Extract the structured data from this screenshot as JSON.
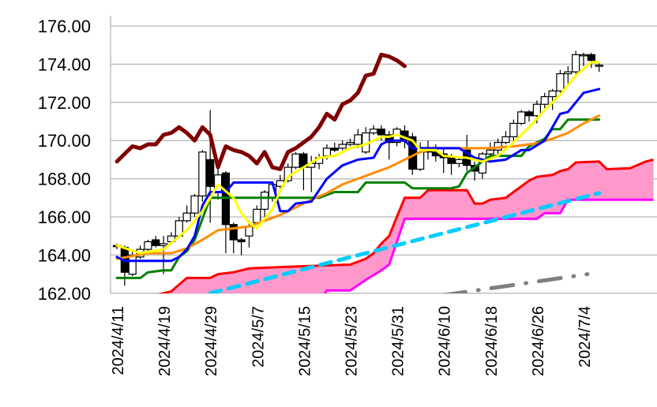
{
  "chart_data": {
    "type": "candlestick-ichimoku",
    "title": "",
    "xlabel": "",
    "ylabel": "",
    "ylim": [
      162,
      176
    ],
    "xlim_index": [
      -0.8,
      69.2
    ],
    "grid": "horizontal",
    "y_ticks": [
      "176.00",
      "174.00",
      "172.00",
      "170.00",
      "168.00",
      "166.00",
      "164.00",
      "162.00"
    ],
    "y_tick_values": [
      176,
      174,
      172,
      170,
      168,
      166,
      164,
      162
    ],
    "x_ticks": [
      {
        "index": 0,
        "label": "2024/4/11"
      },
      {
        "index": 6,
        "label": "2024/4/19"
      },
      {
        "index": 12,
        "label": "2024/4/29"
      },
      {
        "index": 18,
        "label": "2024/5/7"
      },
      {
        "index": 24,
        "label": "2024/5/15"
      },
      {
        "index": 30,
        "label": "2024/5/23"
      },
      {
        "index": 36,
        "label": "2024/5/31"
      },
      {
        "index": 42,
        "label": "2024/6/10"
      },
      {
        "index": 48,
        "label": "2024/6/18"
      },
      {
        "index": 54,
        "label": "2024/6/26"
      },
      {
        "index": 60,
        "label": "2024/7/4"
      }
    ],
    "candles_ohlc": [
      [
        164.5,
        164.6,
        164.3,
        164.45
      ],
      [
        164.4,
        164.5,
        162.4,
        163.1
      ],
      [
        163.0,
        164.3,
        162.9,
        164.0
      ],
      [
        163.9,
        164.5,
        163.8,
        164.3
      ],
      [
        164.3,
        164.8,
        164.2,
        164.7
      ],
      [
        164.8,
        165.0,
        164.4,
        164.5
      ],
      [
        164.5,
        165.0,
        163.0,
        164.6
      ],
      [
        164.7,
        165.2,
        164.6,
        165.0
      ],
      [
        165.0,
        166.0,
        164.9,
        165.8
      ],
      [
        165.8,
        166.6,
        165.7,
        166.2
      ],
      [
        166.2,
        167.2,
        166.0,
        167.1
      ],
      [
        167.1,
        169.5,
        166.8,
        169.4
      ],
      [
        169.0,
        171.6,
        165.7,
        167.6
      ],
      [
        167.3,
        168.9,
        166.9,
        168.2
      ],
      [
        168.3,
        168.4,
        164.1,
        165.6
      ],
      [
        165.6,
        165.7,
        164.1,
        164.8
      ],
      [
        164.8,
        164.9,
        164.0,
        164.7
      ],
      [
        165.0,
        165.8,
        164.4,
        165.5
      ],
      [
        165.7,
        166.6,
        165.6,
        166.4
      ],
      [
        166.4,
        167.4,
        166.0,
        167.3
      ],
      [
        167.0,
        167.8,
        166.8,
        167.7
      ],
      [
        167.6,
        168.2,
        167.3,
        167.9
      ],
      [
        167.9,
        168.8,
        167.8,
        168.6
      ],
      [
        168.6,
        169.4,
        168.5,
        169.3
      ],
      [
        169.3,
        169.4,
        167.4,
        168.6
      ],
      [
        168.6,
        169.2,
        167.3,
        168.8
      ],
      [
        168.8,
        169.3,
        168.5,
        169.1
      ],
      [
        169.2,
        169.8,
        169.0,
        169.6
      ],
      [
        169.6,
        169.9,
        169.4,
        169.5
      ],
      [
        169.6,
        170.0,
        169.5,
        169.8
      ],
      [
        169.8,
        170.1,
        169.7,
        169.9
      ],
      [
        169.8,
        170.6,
        169.6,
        170.3
      ],
      [
        169.4,
        170.7,
        169.3,
        170.4
      ],
      [
        170.4,
        170.8,
        170.3,
        170.6
      ],
      [
        170.6,
        170.8,
        170.0,
        170.3
      ],
      [
        170.3,
        170.5,
        169.0,
        169.9
      ],
      [
        169.9,
        170.7,
        169.7,
        170.6
      ],
      [
        170.5,
        170.8,
        169.6,
        170.0
      ],
      [
        170.2,
        170.4,
        168.2,
        168.5
      ],
      [
        168.5,
        169.9,
        168.4,
        169.6
      ],
      [
        169.6,
        170.0,
        169.0,
        169.4
      ],
      [
        169.4,
        169.8,
        168.9,
        169.2
      ],
      [
        169.3,
        169.6,
        168.3,
        169.1
      ],
      [
        169.1,
        169.3,
        168.2,
        168.8
      ],
      [
        168.8,
        169.1,
        168.6,
        169.0
      ],
      [
        169.5,
        170.3,
        168.4,
        168.7
      ],
      [
        168.7,
        168.9,
        167.9,
        168.4
      ],
      [
        168.3,
        169.4,
        168.0,
        169.3
      ],
      [
        169.3,
        169.9,
        169.1,
        169.5
      ],
      [
        169.5,
        170.1,
        169.3,
        169.9
      ],
      [
        169.9,
        170.5,
        169.8,
        170.2
      ],
      [
        170.2,
        171.1,
        170.0,
        170.9
      ],
      [
        170.9,
        171.6,
        170.8,
        171.5
      ],
      [
        171.5,
        171.6,
        171.0,
        171.3
      ],
      [
        171.3,
        172.1,
        170.9,
        171.9
      ],
      [
        171.9,
        172.5,
        171.7,
        172.3
      ],
      [
        172.3,
        172.7,
        171.6,
        172.6
      ],
      [
        172.6,
        173.7,
        172.5,
        173.5
      ],
      [
        173.5,
        173.9,
        173.0,
        173.6
      ],
      [
        173.6,
        174.7,
        173.5,
        174.5
      ],
      [
        174.5,
        174.6,
        173.9,
        174.5
      ],
      [
        174.5,
        174.6,
        173.8,
        174.2
      ],
      [
        173.95,
        174.05,
        173.6,
        173.95
      ]
    ],
    "series": [
      {
        "name": "chikou",
        "color": "#800000",
        "width": 5,
        "points": [
          [
            0,
            168.9
          ],
          [
            1,
            169.3
          ],
          [
            2,
            169.7
          ],
          [
            3,
            169.6
          ],
          [
            4,
            169.8
          ],
          [
            5,
            169.8
          ],
          [
            6,
            170.3
          ],
          [
            7,
            170.4
          ],
          [
            8,
            170.7
          ],
          [
            9,
            170.4
          ],
          [
            10,
            170.0
          ],
          [
            11,
            170.7
          ],
          [
            12,
            170.3
          ],
          [
            13,
            168.6
          ],
          [
            14,
            169.7
          ],
          [
            15,
            169.5
          ],
          [
            16,
            169.4
          ],
          [
            17,
            169.2
          ],
          [
            18,
            168.8
          ],
          [
            19,
            169.4
          ],
          [
            20,
            168.6
          ],
          [
            21,
            168.5
          ],
          [
            22,
            169.4
          ],
          [
            23,
            169.6
          ],
          [
            24,
            169.9
          ],
          [
            25,
            170.2
          ],
          [
            26,
            170.7
          ],
          [
            27,
            171.4
          ],
          [
            28,
            171.1
          ],
          [
            29,
            171.9
          ],
          [
            30,
            172.1
          ],
          [
            31,
            172.5
          ],
          [
            32,
            173.4
          ],
          [
            33,
            173.5
          ],
          [
            34,
            174.5
          ],
          [
            35,
            174.4
          ],
          [
            36,
            174.2
          ],
          [
            37,
            173.9
          ]
        ]
      },
      {
        "name": "kijun",
        "color": "#008000",
        "width": 3,
        "points": [
          [
            0,
            162.8
          ],
          [
            3,
            162.8
          ],
          [
            4,
            163.1
          ],
          [
            6,
            163.2
          ],
          [
            7,
            163.2
          ],
          [
            8,
            163.9
          ],
          [
            9,
            164.2
          ],
          [
            10,
            164.8
          ],
          [
            11,
            165.9
          ],
          [
            12,
            167.0
          ],
          [
            26,
            167.0
          ],
          [
            28,
            167.3
          ],
          [
            31,
            167.3
          ],
          [
            32,
            167.8
          ],
          [
            37,
            167.8
          ],
          [
            38,
            167.5
          ],
          [
            43,
            167.5
          ],
          [
            44,
            167.6
          ],
          [
            45,
            168.3
          ],
          [
            46,
            168.6
          ],
          [
            47,
            168.9
          ],
          [
            48,
            169.2
          ],
          [
            52,
            169.2
          ],
          [
            53,
            169.7
          ],
          [
            55,
            170.1
          ],
          [
            56,
            170.6
          ],
          [
            57,
            170.6
          ],
          [
            58,
            171.1
          ],
          [
            62,
            171.1
          ]
        ]
      },
      {
        "name": "ma-long",
        "color": "#FF8C00",
        "width": 3,
        "points": [
          [
            0,
            163.8
          ],
          [
            4,
            164.1
          ],
          [
            7,
            164.1
          ],
          [
            9,
            164.35
          ],
          [
            11,
            164.8
          ],
          [
            13,
            165.3
          ],
          [
            15,
            165.4
          ],
          [
            17,
            165.5
          ],
          [
            19,
            165.8
          ],
          [
            21,
            166.1
          ],
          [
            23,
            166.5
          ],
          [
            25,
            166.9
          ],
          [
            27,
            167.25
          ],
          [
            29,
            167.7
          ],
          [
            31,
            168.0
          ],
          [
            33,
            168.3
          ],
          [
            34,
            168.45
          ],
          [
            35,
            168.6
          ],
          [
            37,
            169.0
          ],
          [
            39,
            169.4
          ],
          [
            41,
            169.6
          ],
          [
            44,
            169.6
          ],
          [
            48,
            169.6
          ],
          [
            51,
            169.7
          ],
          [
            54,
            169.85
          ],
          [
            56,
            170.1
          ],
          [
            58,
            170.4
          ],
          [
            60,
            170.9
          ],
          [
            62,
            171.3
          ]
        ]
      },
      {
        "name": "tenkan",
        "color": "#0000FF",
        "width": 3,
        "points": [
          [
            0,
            163.9
          ],
          [
            1,
            163.7
          ],
          [
            7,
            163.7
          ],
          [
            8,
            163.9
          ],
          [
            9,
            164.3
          ],
          [
            10,
            165.0
          ],
          [
            11,
            166.6
          ],
          [
            12,
            167.3
          ],
          [
            14,
            167.3
          ],
          [
            15,
            167.8
          ],
          [
            20,
            167.8
          ],
          [
            21,
            166.3
          ],
          [
            22,
            166.3
          ],
          [
            23,
            166.7
          ],
          [
            25,
            166.8
          ],
          [
            27,
            168.0
          ],
          [
            29,
            168.7
          ],
          [
            31,
            169.0
          ],
          [
            33,
            169.1
          ],
          [
            34,
            169.8
          ],
          [
            35,
            170.0
          ],
          [
            37,
            170.0
          ],
          [
            38,
            169.6
          ],
          [
            44,
            169.6
          ],
          [
            46,
            169.1
          ],
          [
            48,
            168.9
          ],
          [
            50,
            169.0
          ],
          [
            52,
            169.5
          ],
          [
            53,
            169.5
          ],
          [
            55,
            170.0
          ],
          [
            57,
            171.4
          ],
          [
            58,
            171.5
          ],
          [
            60,
            172.5
          ],
          [
            62,
            172.7
          ]
        ]
      },
      {
        "name": "ma-short",
        "color": "#FFFF00",
        "width": 3,
        "points": [
          [
            0,
            164.5
          ],
          [
            3,
            164.1
          ],
          [
            6,
            164.3
          ],
          [
            9,
            165.3
          ],
          [
            11,
            166.3
          ],
          [
            13,
            167.7
          ],
          [
            15,
            167.0
          ],
          [
            16,
            166.2
          ],
          [
            17,
            165.7
          ],
          [
            18,
            165.4
          ],
          [
            19,
            165.9
          ],
          [
            20,
            166.4
          ],
          [
            21,
            167.4
          ],
          [
            22,
            168.1
          ],
          [
            24,
            168.6
          ],
          [
            26,
            169.1
          ],
          [
            28,
            169.2
          ],
          [
            30,
            169.6
          ],
          [
            32,
            169.8
          ],
          [
            34,
            170.2
          ],
          [
            35,
            170.2
          ],
          [
            36,
            170.3
          ],
          [
            38,
            170.0
          ],
          [
            39,
            169.5
          ],
          [
            41,
            169.5
          ],
          [
            42,
            169.2
          ],
          [
            45,
            169.1
          ],
          [
            47,
            168.9
          ],
          [
            49,
            169.2
          ],
          [
            51,
            169.9
          ],
          [
            53,
            170.7
          ],
          [
            55,
            171.6
          ],
          [
            57,
            172.4
          ],
          [
            59,
            173.4
          ],
          [
            61,
            174.1
          ],
          [
            62,
            174.1
          ]
        ]
      }
    ],
    "cloud": {
      "fill": "#FF99CC",
      "senkou_a": {
        "color": "#FF0000",
        "points": [
          [
            5,
            161.9
          ],
          [
            7,
            162.1
          ],
          [
            9,
            162.8
          ],
          [
            12,
            162.8
          ],
          [
            13,
            163.0
          ],
          [
            15,
            163.1
          ],
          [
            17,
            163.3
          ],
          [
            23,
            163.4
          ],
          [
            30,
            163.5
          ],
          [
            32,
            163.8
          ],
          [
            33,
            164.1
          ],
          [
            34,
            164.6
          ],
          [
            35,
            165.0
          ],
          [
            36,
            166.0
          ],
          [
            37,
            167.0
          ],
          [
            39,
            167.0
          ],
          [
            40,
            167.4
          ],
          [
            45,
            167.4
          ],
          [
            46,
            166.7
          ],
          [
            47,
            166.7
          ],
          [
            48,
            166.9
          ],
          [
            50,
            167.0
          ],
          [
            51,
            167.3
          ],
          [
            53,
            167.9
          ],
          [
            54,
            168.1
          ],
          [
            56,
            168.2
          ],
          [
            57,
            168.4
          ],
          [
            58,
            168.5
          ],
          [
            59,
            168.85
          ],
          [
            62,
            168.9
          ],
          [
            63,
            168.5
          ],
          [
            66,
            168.55
          ],
          [
            68,
            168.9
          ],
          [
            69,
            169.0
          ]
        ]
      },
      "senkou_b": {
        "color": "#FF00FF",
        "points": [
          [
            5,
            161.0
          ],
          [
            26,
            161.5
          ],
          [
            27,
            162.15
          ],
          [
            30,
            162.15
          ],
          [
            32,
            162.7
          ],
          [
            34,
            163.2
          ],
          [
            35,
            163.5
          ],
          [
            37,
            165.9
          ],
          [
            54,
            165.9
          ],
          [
            55,
            166.2
          ],
          [
            57,
            166.2
          ],
          [
            58,
            166.9
          ],
          [
            69,
            166.9
          ]
        ]
      }
    },
    "trendlines": [
      {
        "name": "support-trend",
        "color": "#00CCFF",
        "style": "dashed",
        "points": [
          [
            12,
            162.0
          ],
          [
            62,
            167.25
          ]
        ]
      },
      {
        "name": "lower-trend",
        "color": "#808080",
        "style": "dash-dot",
        "points": [
          [
            42,
            161.9
          ],
          [
            60.5,
            163.0
          ]
        ]
      }
    ]
  }
}
